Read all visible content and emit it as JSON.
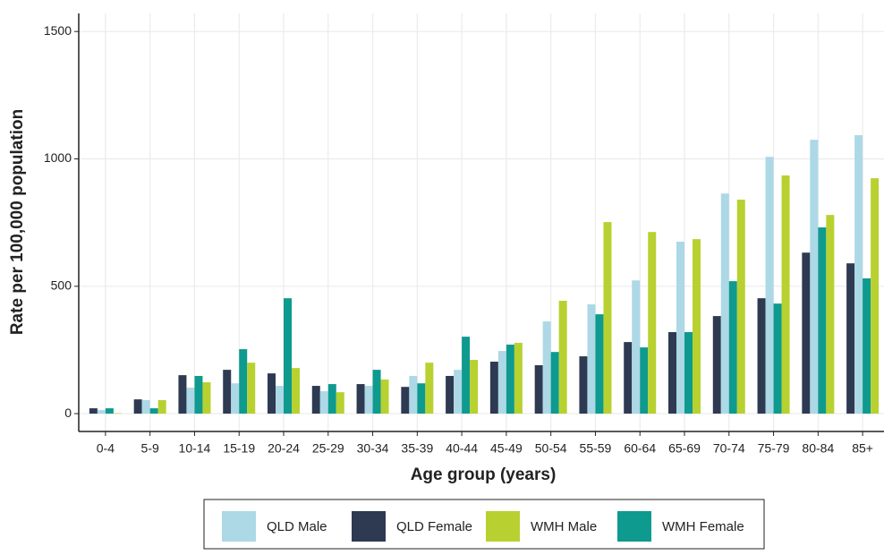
{
  "chart_data": {
    "type": "bar",
    "x_label": "Age group (years)",
    "y_label": "Rate per 100,000 population",
    "categories": [
      "0-4",
      "5-9",
      "10-14",
      "15-19",
      "20-24",
      "25-29",
      "30-34",
      "35-39",
      "40-44",
      "45-49",
      "50-54",
      "55-59",
      "60-64",
      "65-69",
      "70-74",
      "75-79",
      "80-84",
      "85+"
    ],
    "series": [
      {
        "name": "QLD Male",
        "color": "#add8e6",
        "values": [
          14,
          53,
          102,
          119,
          109,
          88,
          109,
          148,
          172,
          246,
          362,
          429,
          523,
          675,
          864,
          1008,
          1075,
          1093
        ]
      },
      {
        "name": "QLD Female",
        "color": "#2e3a52",
        "values": [
          21,
          56,
          151,
          172,
          158,
          109,
          116,
          105,
          148,
          204,
          190,
          225,
          281,
          320,
          383,
          453,
          632,
          590
        ]
      },
      {
        "name": "WMH Male",
        "color": "#b8d130",
        "values": [
          2,
          53,
          123,
          200,
          179,
          84,
          134,
          200,
          211,
          278,
          443,
          752,
          713,
          685,
          840,
          935,
          780,
          924
        ]
      },
      {
        "name": "WMH Female",
        "color": "#0e9a8e",
        "values": [
          21,
          21,
          148,
          253,
          453,
          116,
          172,
          119,
          302,
          271,
          242,
          390,
          260,
          320,
          520,
          432,
          731,
          531
        ]
      }
    ],
    "ylim": [
      -70,
      1571
    ],
    "yticks": [
      0,
      500,
      1000,
      1500
    ],
    "grid": true,
    "legend": "bottom"
  }
}
